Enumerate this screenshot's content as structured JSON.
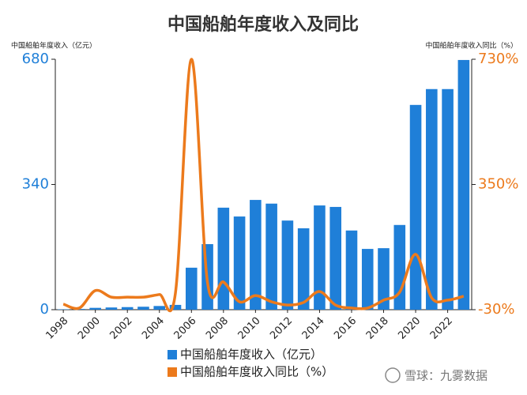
{
  "chart_data": {
    "type": "bar",
    "title": "中国船舶年度收入及同比",
    "y_label": "中国船舶年度收入（亿元）",
    "y2_label": "中国船舶年度收入同比（%）",
    "x": [
      1998,
      1999,
      2000,
      2001,
      2002,
      2003,
      2004,
      2005,
      2006,
      2007,
      2008,
      2009,
      2010,
      2011,
      2012,
      2013,
      2014,
      2015,
      2016,
      2017,
      2018,
      2019,
      2020,
      2021,
      2022,
      2023
    ],
    "xlim": [
      1997.5,
      2023.5
    ],
    "xticks": [
      1998,
      2000,
      2002,
      2004,
      2006,
      2008,
      2010,
      2012,
      2014,
      2016,
      2018,
      2020,
      2022
    ],
    "ylim": [
      0,
      680
    ],
    "yticks": [
      0,
      340,
      680
    ],
    "y2lim": [
      -30,
      730
    ],
    "y2ticks": [
      {
        "value": -30,
        "label": "-30%"
      },
      {
        "value": 350,
        "label": "350%"
      },
      {
        "value": 730,
        "label": "730%"
      }
    ],
    "series": [
      {
        "name": "中国船舶年度收入（亿元）",
        "type": "bar",
        "color": "#1f7fd8",
        "values": [
          1,
          2,
          5,
          6,
          7,
          8,
          10,
          13,
          114,
          178,
          277,
          253,
          298,
          288,
          242,
          221,
          283,
          279,
          215,
          165,
          167,
          230,
          556,
          599,
          599,
          678
        ]
      },
      {
        "name": "中国船舶年度收入同比（%）",
        "type": "line",
        "axis": "y2",
        "color": "#ec7a1c",
        "values": [
          -13,
          -25,
          28,
          8,
          8,
          8,
          16,
          20,
          730,
          54,
          54,
          -6,
          13,
          -6,
          -16,
          -8,
          25,
          -16,
          -25,
          -25,
          -1,
          23,
          138,
          6,
          -1,
          11
        ]
      }
    ],
    "watermark": "雪球：九雾数据"
  }
}
